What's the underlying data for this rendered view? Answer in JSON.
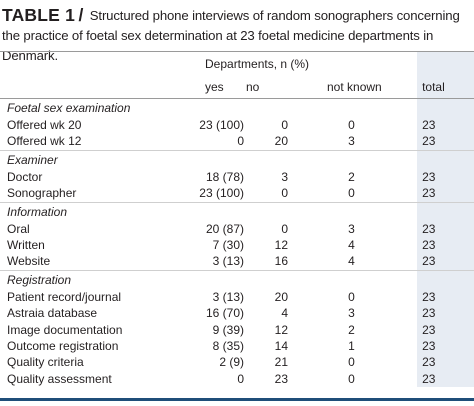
{
  "caption": {
    "label": "TABLE 1",
    "slash": "/",
    "text": "Structured phone interviews of random sonographers concerning the practice of foetal sex determination at 23 foetal medicine departments in Denmark."
  },
  "table": {
    "group_header": "Departments, n (%)",
    "columns": [
      "yes",
      "no",
      "not known",
      "total"
    ],
    "sections": [
      {
        "title": "Foetal sex examination",
        "rows": [
          {
            "label": "Offered wk 20",
            "yes": "23 (100)",
            "no": "0",
            "not_known": "0",
            "total": "23"
          },
          {
            "label": "Offered wk 12",
            "yes": "0",
            "no": "20",
            "not_known": "3",
            "total": "23"
          }
        ]
      },
      {
        "title": "Examiner",
        "rows": [
          {
            "label": "Doctor",
            "yes": "18 (78)",
            "no": "3",
            "not_known": "2",
            "total": "23"
          },
          {
            "label": "Sonographer",
            "yes": "23 (100)",
            "no": "0",
            "not_known": "0",
            "total": "23"
          }
        ]
      },
      {
        "title": "Information",
        "rows": [
          {
            "label": "Oral",
            "yes": "20 (87)",
            "no": "0",
            "not_known": "3",
            "total": "23"
          },
          {
            "label": "Written",
            "yes": "7 (30)",
            "no": "12",
            "not_known": "4",
            "total": "23"
          },
          {
            "label": "Website",
            "yes": "3 (13)",
            "no": "16",
            "not_known": "4",
            "total": "23"
          }
        ]
      },
      {
        "title": "Registration",
        "rows": [
          {
            "label": "Patient record/journal",
            "yes": "3 (13)",
            "no": "20",
            "not_known": "0",
            "total": "23"
          },
          {
            "label": "Astraia database",
            "yes": "16 (70)",
            "no": "4",
            "not_known": "3",
            "total": "23"
          },
          {
            "label": "Image documentation",
            "yes": "9 (39)",
            "no": "12",
            "not_known": "2",
            "total": "23"
          },
          {
            "label": "Outcome registration",
            "yes": "8 (35)",
            "no": "14",
            "not_known": "1",
            "total": "23"
          },
          {
            "label": "Quality criteria",
            "yes": "2 (9)",
            "no": "21",
            "not_known": "0",
            "total": "23"
          },
          {
            "label": "Quality assessment",
            "yes": "0",
            "no": "23",
            "not_known": "0",
            "total": "23"
          }
        ]
      }
    ]
  },
  "colors": {
    "total_column_bg": "#e7ecf3",
    "bottom_rule": "#1f4e79"
  }
}
